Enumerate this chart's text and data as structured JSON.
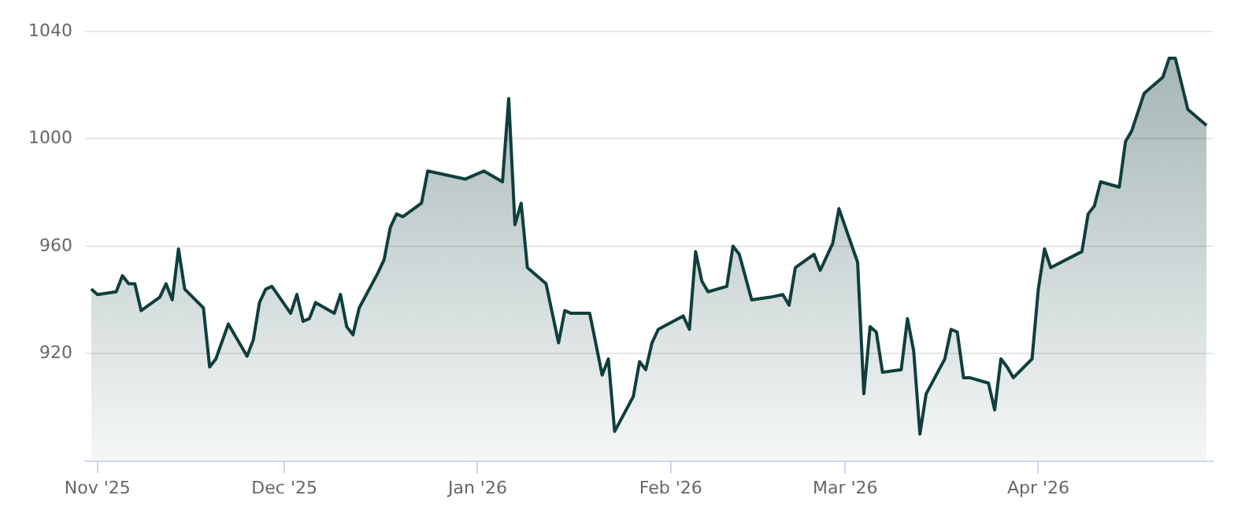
{
  "chart_data": {
    "type": "area",
    "grid": "y",
    "color": "#0f3f3c",
    "x": [
      "2025-10-31",
      "2025-11-01",
      "2025-11-04",
      "2025-11-05",
      "2025-11-06",
      "2025-11-07",
      "2025-11-08",
      "2025-11-11",
      "2025-11-12",
      "2025-11-13",
      "2025-11-14",
      "2025-11-15",
      "2025-11-18",
      "2025-11-19",
      "2025-11-20",
      "2025-11-22",
      "2025-11-25",
      "2025-11-26",
      "2025-11-27",
      "2025-11-28",
      "2025-11-29",
      "2025-12-02",
      "2025-12-03",
      "2025-12-04",
      "2025-12-05",
      "2025-12-06",
      "2025-12-09",
      "2025-12-10",
      "2025-12-11",
      "2025-12-12",
      "2025-12-13",
      "2025-12-16",
      "2025-12-17",
      "2025-12-18",
      "2025-12-19",
      "2025-12-20",
      "2025-12-23",
      "2025-12-24",
      "2025-12-30",
      "2026-01-02",
      "2026-01-05",
      "2026-01-06",
      "2026-01-07",
      "2026-01-08",
      "2026-01-09",
      "2026-01-12",
      "2026-01-14",
      "2026-01-15",
      "2026-01-16",
      "2026-01-19",
      "2026-01-21",
      "2026-01-22",
      "2026-01-23",
      "2026-01-26",
      "2026-01-27",
      "2026-01-28",
      "2026-01-29",
      "2026-01-30",
      "2026-02-03",
      "2026-02-04",
      "2026-02-05",
      "2026-02-06",
      "2026-02-07",
      "2026-02-10",
      "2026-02-11",
      "2026-02-12",
      "2026-02-14",
      "2026-02-17",
      "2026-02-19",
      "2026-02-20",
      "2026-02-21",
      "2026-02-24",
      "2026-02-25",
      "2026-02-27",
      "2026-02-28",
      "2026-03-03",
      "2026-03-04",
      "2026-03-05",
      "2026-03-06",
      "2026-03-07",
      "2026-03-10",
      "2026-03-11",
      "2026-03-12",
      "2026-03-13",
      "2026-03-14",
      "2026-03-17",
      "2026-03-18",
      "2026-03-19",
      "2026-03-20",
      "2026-03-21",
      "2026-03-24",
      "2026-03-25",
      "2026-03-26",
      "2026-03-27",
      "2026-03-28",
      "2026-03-31",
      "2026-04-01",
      "2026-04-02",
      "2026-04-03",
      "2026-04-08",
      "2026-04-09",
      "2026-04-10",
      "2026-04-11",
      "2026-04-14",
      "2026-04-15",
      "2026-04-16",
      "2026-04-18",
      "2026-04-21",
      "2026-04-22",
      "2026-04-23",
      "2026-04-25",
      "2026-04-28"
    ],
    "values": [
      944,
      942,
      943,
      949,
      946,
      946,
      936,
      941,
      946,
      940,
      959,
      944,
      937,
      915,
      918,
      931,
      919,
      925,
      939,
      944,
      945,
      935,
      942,
      932,
      933,
      939,
      935,
      942,
      930,
      927,
      937,
      950,
      955,
      967,
      972,
      971,
      976,
      988,
      985,
      988,
      984,
      1015,
      968,
      976,
      952,
      946,
      924,
      936,
      935,
      935,
      912,
      918,
      891,
      904,
      917,
      914,
      924,
      929,
      934,
      929,
      958,
      947,
      943,
      945,
      960,
      957,
      940,
      941,
      942,
      938,
      952,
      957,
      951,
      961,
      974,
      954,
      905,
      930,
      928,
      913,
      914,
      933,
      921,
      890,
      905,
      918,
      929,
      928,
      911,
      911,
      909,
      899,
      918,
      915,
      911,
      918,
      944,
      959,
      952,
      958,
      972,
      975,
      984,
      982,
      999,
      1003,
      1017,
      1023,
      1030,
      1030,
      1011,
      1005
    ],
    "xlim": [
      "2025-10-30",
      "2026-04-29"
    ],
    "xticks": [
      {
        "value": "2025-11-01",
        "label": "Nov '25"
      },
      {
        "value": "2025-12-01",
        "label": "Dec '25"
      },
      {
        "value": "2026-01-01",
        "label": "Jan '26"
      },
      {
        "value": "2026-02-01",
        "label": "Feb '26"
      },
      {
        "value": "2026-03-01",
        "label": "Mar '26"
      },
      {
        "value": "2026-04-01",
        "label": "Apr '26"
      }
    ],
    "ylim": [
      880,
      1040
    ],
    "yticks": [
      920,
      960,
      1000,
      1040
    ]
  }
}
